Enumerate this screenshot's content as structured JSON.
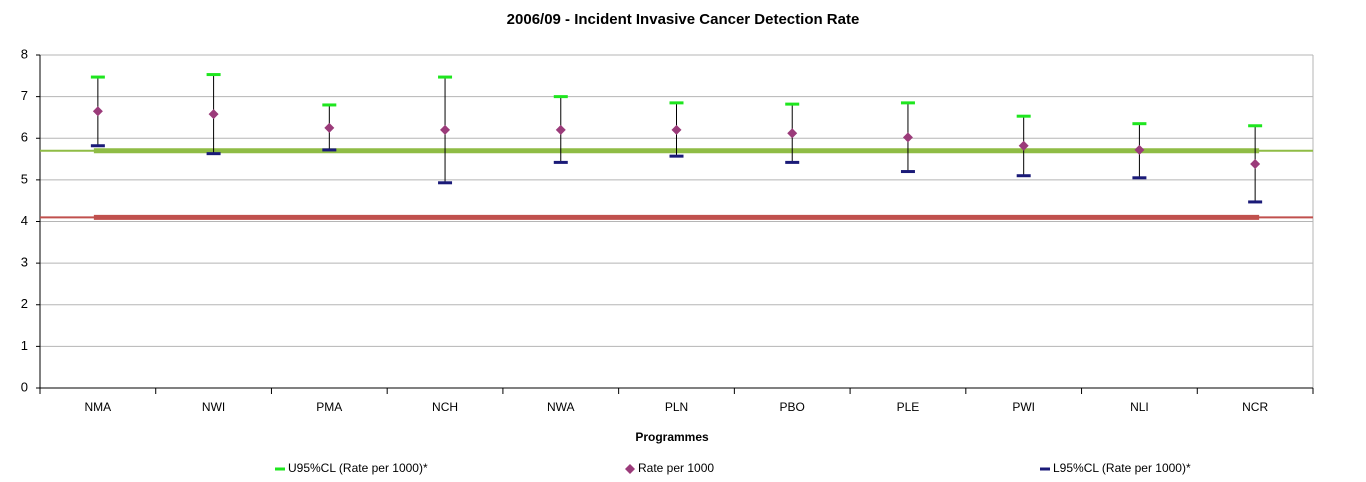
{
  "chart_data": {
    "type": "errorbar",
    "title": "2006/09 - Incident Invasive Cancer Detection Rate",
    "x_label": "Programmes",
    "categories": [
      "NMA",
      "NWI",
      "PMA",
      "NCH",
      "NWA",
      "PLN",
      "PBO",
      "PLE",
      "PWI",
      "NLI",
      "NCR"
    ],
    "series": [
      {
        "name": "U95%CL (Rate per 1000)*",
        "color": "#1ee61e",
        "values": [
          7.47,
          7.53,
          6.8,
          7.47,
          7.0,
          6.85,
          6.82,
          6.85,
          6.53,
          6.35,
          6.3
        ]
      },
      {
        "name": "Rate per 1000",
        "color": "#9b3b7a",
        "values": [
          6.65,
          6.58,
          6.25,
          6.2,
          6.2,
          6.2,
          6.12,
          6.02,
          5.82,
          5.72,
          5.38
        ]
      },
      {
        "name": "L95%CL (Rate per 1000)*",
        "color": "#1a1a78",
        "values": [
          5.82,
          5.63,
          5.72,
          4.93,
          5.42,
          5.57,
          5.42,
          5.2,
          5.1,
          5.05,
          4.47
        ]
      }
    ],
    "reference_lines": [
      {
        "value": 5.7,
        "color": "#8fbc45"
      },
      {
        "value": 4.1,
        "color": "#c0504d"
      }
    ],
    "ylim": [
      0,
      8
    ],
    "yticks": [
      0,
      1,
      2,
      3,
      4,
      5,
      6,
      7,
      8
    ],
    "grid": true
  }
}
